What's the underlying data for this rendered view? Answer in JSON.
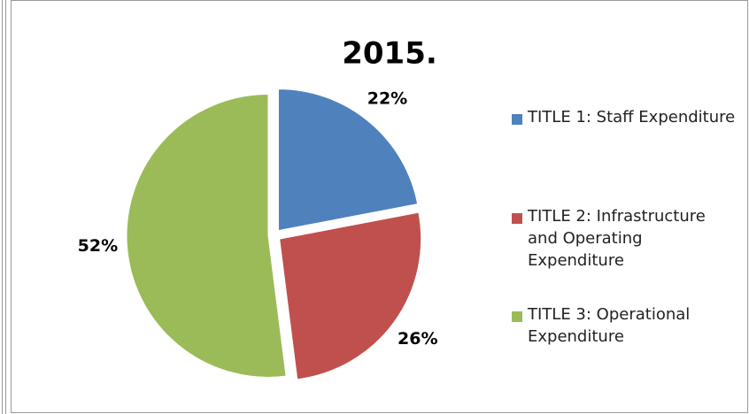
{
  "chart_data": {
    "type": "pie",
    "title": "2015.",
    "categories": [
      "TITLE 1: Staff Expenditure",
      "TITLE 2: Infrastructure and Operating Expenditure",
      "TITLE 3: Operational Expenditure"
    ],
    "values": [
      22,
      26,
      52
    ],
    "value_labels": [
      "22%",
      "26%",
      "52%"
    ],
    "colors": [
      "#4f81bd",
      "#c0504d",
      "#9bbb59"
    ],
    "legend": "right"
  }
}
